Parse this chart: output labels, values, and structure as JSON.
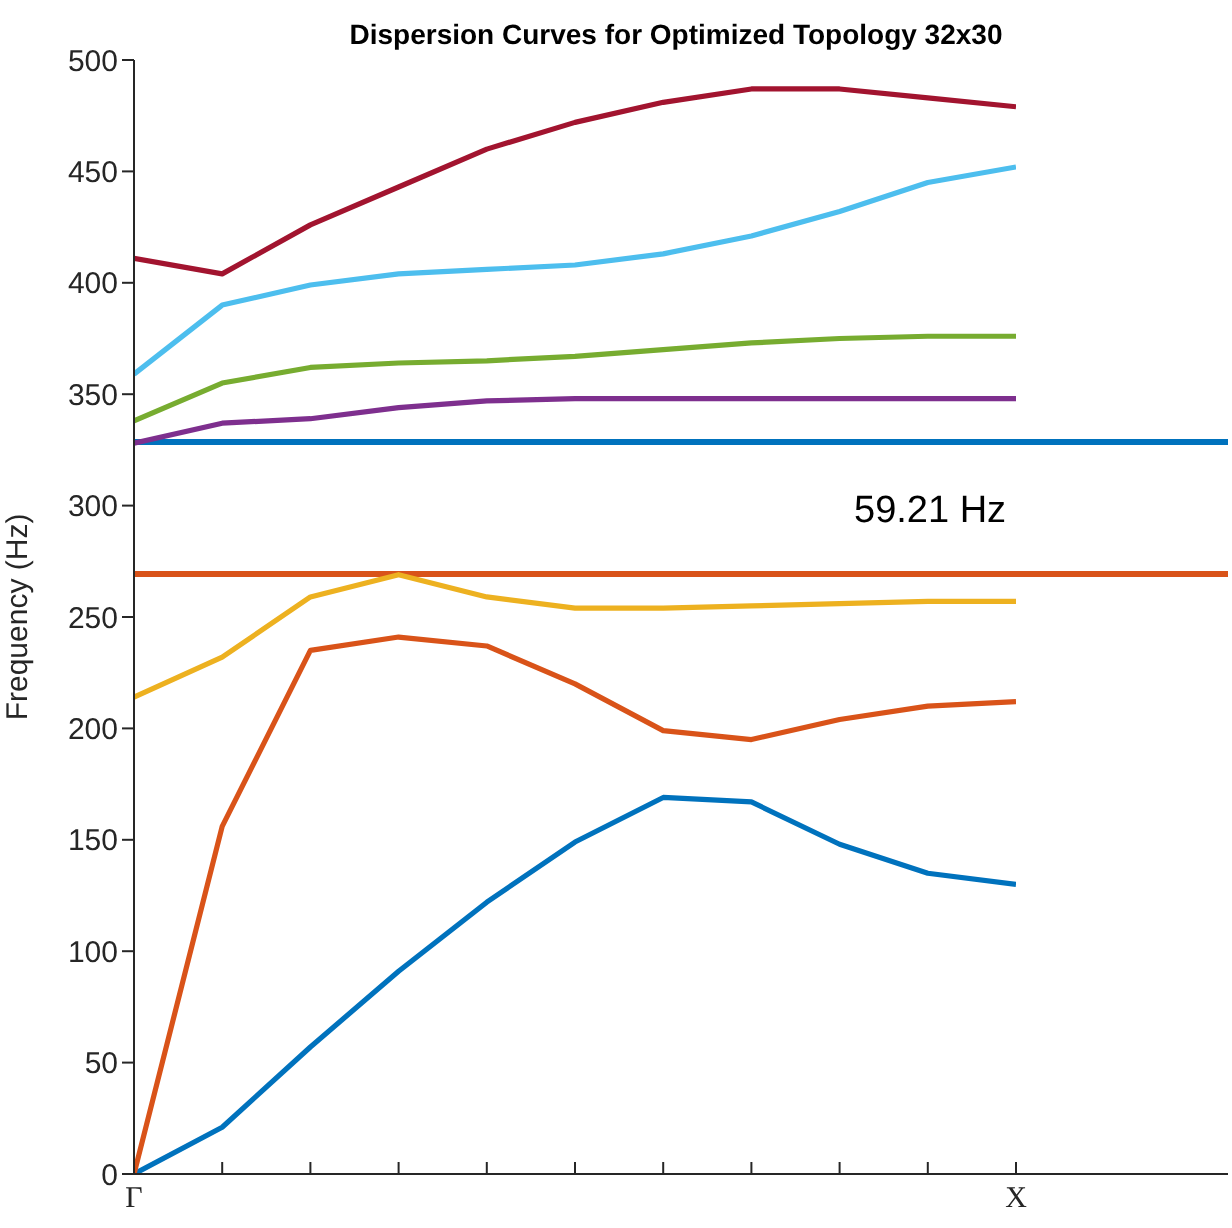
{
  "chart_data": {
    "type": "line",
    "title": "Dispersion Curves for Optimized Topology 32x30",
    "ylabel": "Frequency (Hz)",
    "categories": [
      "Γ",
      null,
      null,
      null,
      null,
      null,
      null,
      null,
      null,
      null,
      "X"
    ],
    "ylim": [
      0,
      500
    ],
    "yticks": [
      0,
      50,
      100,
      150,
      200,
      250,
      300,
      350,
      400,
      450,
      500
    ],
    "marker": "none",
    "line_style": "solid",
    "series": [
      {
        "color": "#0072bd",
        "values": [
          0,
          21,
          57,
          91,
          122,
          149,
          169,
          167,
          148,
          135,
          130
        ]
      },
      {
        "color": "#d95319",
        "values": [
          0,
          156,
          235,
          241,
          237,
          220,
          199,
          195,
          204,
          210,
          212
        ]
      },
      {
        "color": "#edb120",
        "values": [
          214,
          232,
          259,
          269,
          259,
          254,
          254,
          255,
          256,
          257,
          257
        ]
      },
      {
        "color": "#7e2f8e",
        "values": [
          328,
          337,
          339,
          344,
          347,
          348,
          348,
          348,
          348,
          348,
          348
        ]
      },
      {
        "color": "#77ac30",
        "values": [
          338,
          355,
          362,
          364,
          365,
          367,
          370,
          373,
          375,
          376,
          376
        ]
      },
      {
        "color": "#4dbeee",
        "values": [
          359,
          390,
          399,
          404,
          406,
          408,
          413,
          421,
          432,
          445,
          452
        ]
      },
      {
        "color": "#a2142f",
        "values": [
          411,
          404,
          426,
          443,
          460,
          472,
          481,
          487,
          487,
          483,
          479
        ]
      }
    ],
    "ref_lines": [
      {
        "axis": "y",
        "value": 328.5,
        "color": "#0072bd"
      },
      {
        "axis": "y",
        "value": 269.3,
        "color": "#d95319"
      }
    ],
    "annotations": [
      "59.21 Hz"
    ]
  }
}
